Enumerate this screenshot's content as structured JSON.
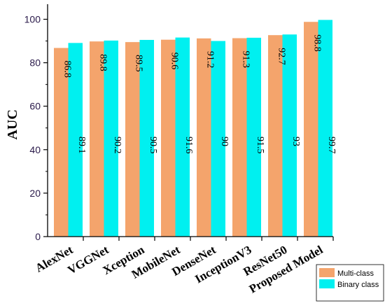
{
  "chart_data": {
    "type": "bar",
    "title": "",
    "xlabel": "",
    "ylabel": "AUC",
    "ylim": [
      0,
      105
    ],
    "yticks": [
      0,
      20,
      40,
      60,
      80,
      100
    ],
    "grid": false,
    "legend_position": "bottom-right",
    "categories": [
      "AlexNet",
      "VGGNet",
      "Xception",
      "MobileNet",
      "DenseNet",
      "InceptionV3",
      "ResNet50",
      "Proposed Model"
    ],
    "series": [
      {
        "name": "Multi-class",
        "color": "#f4a46c",
        "values": [
          86.8,
          89.8,
          89.5,
          90.6,
          91.2,
          91.3,
          92.7,
          98.8
        ]
      },
      {
        "name": "Binary class",
        "color": "#00f0f0",
        "values": [
          89.1,
          90.2,
          90.5,
          91.6,
          90,
          91.5,
          93,
          99.7
        ]
      }
    ],
    "data_labels": {
      "Multi-class": [
        "86.8",
        "89.8",
        "89.5",
        "90.6",
        "91.2",
        "91.3",
        "92.7",
        "98.8"
      ],
      "Binary class": [
        "89.1",
        "90.2",
        "90.5",
        "91.6",
        "90",
        "91.5",
        "93",
        "99.7"
      ]
    }
  }
}
